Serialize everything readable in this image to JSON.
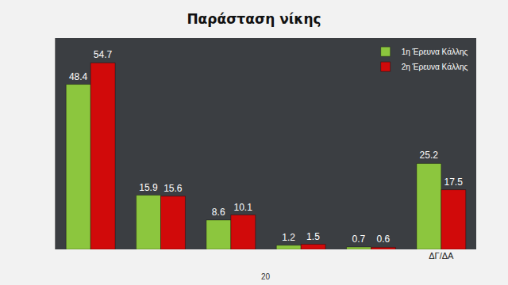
{
  "chart_data": {
    "type": "bar",
    "title": "Παράσταση νίκης",
    "categories": [
      null,
      null,
      null,
      null,
      null,
      "ΔΓ/ΔΑ"
    ],
    "series": [
      {
        "name": "1η Έρευνα Κάλλης",
        "color": "#8cc63e",
        "values": [
          48.4,
          15.9,
          8.6,
          1.2,
          0.7,
          25.2
        ]
      },
      {
        "name": "2η Έρευνα Κάλλης",
        "color": "#d10a0a",
        "values": [
          54.7,
          15.6,
          10.1,
          1.5,
          0.6,
          17.5
        ]
      }
    ],
    "ylim": [
      0,
      62
    ],
    "data_labels": true,
    "tick_labels": "x",
    "legend": "top-right",
    "grid": false,
    "annotations": [
      "20"
    ]
  }
}
